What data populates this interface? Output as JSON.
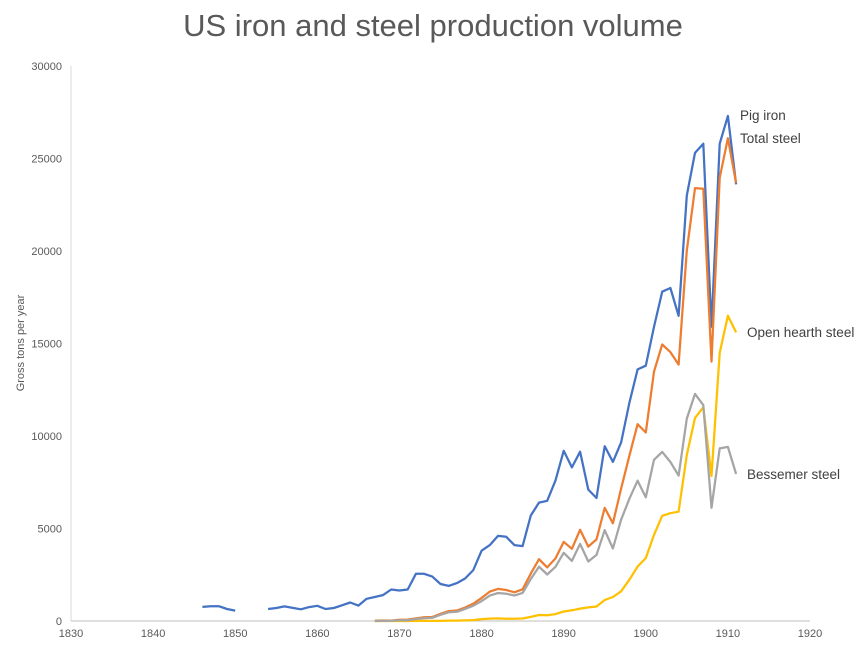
{
  "chart_data": {
    "type": "line",
    "title": "US iron and steel production volume",
    "xlabel": "",
    "ylabel": "Gross tons per year",
    "xlim": [
      1830,
      1920
    ],
    "ylim": [
      0,
      30000
    ],
    "xticks": [
      1830,
      1840,
      1850,
      1860,
      1870,
      1880,
      1890,
      1900,
      1910,
      1920
    ],
    "yticks": [
      0,
      5000,
      10000,
      15000,
      20000,
      25000,
      30000
    ],
    "grid": false,
    "legend": "inline labels at line ends",
    "series": [
      {
        "name": "Pig iron",
        "color": "#4472C4",
        "start": 1846,
        "values": [
          760,
          800,
          800,
          650,
          560,
          null,
          null,
          null,
          650,
          700,
          790,
          710,
          630,
          750,
          820,
          650,
          700,
          850,
          1000,
          830,
          1200,
          1300,
          1400,
          1700,
          1650,
          1700,
          2550,
          2550,
          2400,
          2000,
          1900,
          2050,
          2300,
          2750,
          3800,
          4100,
          4600,
          4550,
          4100,
          4050,
          5700,
          6400,
          6500,
          7600,
          9200,
          8300,
          9150,
          7100,
          6650,
          9450,
          8600,
          9650,
          11800,
          13600,
          13800,
          15900,
          17800,
          18000,
          16500,
          23000,
          25300,
          25800,
          15900,
          25800,
          27300,
          23600
        ]
      },
      {
        "name": "Total steel",
        "color": "#ED7D31",
        "start": 1867,
        "values": [
          20,
          27,
          20,
          69,
          73,
          143,
          199,
          216,
          390,
          533,
          570,
          732,
          935,
          1247,
          1588,
          1737,
          1674,
          1551,
          1712,
          2563,
          3340,
          2900,
          3386,
          4277,
          3904,
          4928,
          4020,
          4412,
          6115,
          5282,
          7157,
          8933,
          10640,
          10188,
          13474,
          14947,
          14535,
          13860,
          20024,
          23398,
          23363,
          14023,
          23955,
          26095,
          23676
        ]
      },
      {
        "name": "Open hearth steel",
        "color": "#FFC000",
        "start": 1867,
        "values": [
          0,
          0,
          0,
          1,
          2,
          3,
          3,
          7,
          8,
          19,
          22,
          32,
          50,
          101,
          131,
          143,
          119,
          117,
          133,
          219,
          322,
          314,
          375,
          513,
          580,
          669,
          737,
          784,
          1137,
          1298,
          1608,
          2230,
          2947,
          3398,
          4656,
          5687,
          5829,
          5908,
          8971,
          10980,
          11549,
          7836,
          14493,
          16505,
          15598
        ]
      },
      {
        "name": "Bessemer steel",
        "color": "#A5A5A5",
        "start": 1867,
        "values": [
          2,
          8,
          11,
          38,
          40,
          110,
          152,
          172,
          335,
          470,
          500,
          653,
          829,
          1074,
          1374,
          1515,
          1478,
          1376,
          1520,
          2270,
          2936,
          2511,
          2930,
          3689,
          3247,
          4168,
          3215,
          3571,
          4910,
          3919,
          5475,
          6609,
          7586,
          6685,
          8713,
          9138,
          8593,
          7860,
          10941,
          12275,
          11668,
          6117,
          9330,
          9413,
          7948
        ]
      }
    ]
  }
}
